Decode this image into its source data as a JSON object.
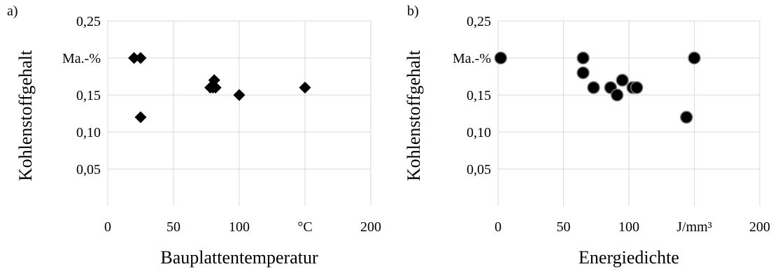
{
  "chart_data": [
    {
      "panel_label": "a)",
      "type": "scatter",
      "marker": "diamond",
      "xlabel": "Bauplattentemperatur",
      "ylabel": "Kohlenstoffgehalt",
      "xlim": [
        0,
        200
      ],
      "ylim": [
        0,
        0.25
      ],
      "x_ticks": [
        0,
        50,
        100,
        150,
        200
      ],
      "x_tick_labels": [
        "0",
        "50",
        "100",
        "°C",
        "200"
      ],
      "y_ticks": [
        0.05,
        0.1,
        0.15,
        0.2,
        0.25
      ],
      "y_tick_labels": [
        "0,05",
        "0,10",
        "0,15",
        "Ma.-%",
        "0,25"
      ],
      "grid": true,
      "points": [
        {
          "x": 20,
          "y": 0.2
        },
        {
          "x": 25,
          "y": 0.2
        },
        {
          "x": 25,
          "y": 0.12
        },
        {
          "x": 78,
          "y": 0.16
        },
        {
          "x": 80,
          "y": 0.16
        },
        {
          "x": 82,
          "y": 0.16
        },
        {
          "x": 81,
          "y": 0.17
        },
        {
          "x": 100,
          "y": 0.15
        },
        {
          "x": 150,
          "y": 0.16
        }
      ]
    },
    {
      "panel_label": "b)",
      "type": "scatter",
      "marker": "circle",
      "xlabel": "Energiedichte",
      "ylabel": "Kohlenstoffgehalt",
      "xlim": [
        0,
        200
      ],
      "ylim": [
        0,
        0.25
      ],
      "x_ticks": [
        0,
        50,
        100,
        150,
        200
      ],
      "x_tick_labels": [
        "0",
        "50",
        "100",
        "J/mm³",
        "200"
      ],
      "y_ticks": [
        0.05,
        0.1,
        0.15,
        0.2,
        0.25
      ],
      "y_tick_labels": [
        "0,05",
        "0,10",
        "0,15",
        "Ma.-%",
        "0,25"
      ],
      "grid": true,
      "points": [
        {
          "x": 2,
          "y": 0.2
        },
        {
          "x": 65,
          "y": 0.2
        },
        {
          "x": 65,
          "y": 0.18
        },
        {
          "x": 73,
          "y": 0.16
        },
        {
          "x": 86,
          "y": 0.16
        },
        {
          "x": 91,
          "y": 0.15
        },
        {
          "x": 95,
          "y": 0.17
        },
        {
          "x": 103,
          "y": 0.16
        },
        {
          "x": 106,
          "y": 0.16
        },
        {
          "x": 144,
          "y": 0.12
        },
        {
          "x": 150,
          "y": 0.2
        }
      ]
    }
  ]
}
